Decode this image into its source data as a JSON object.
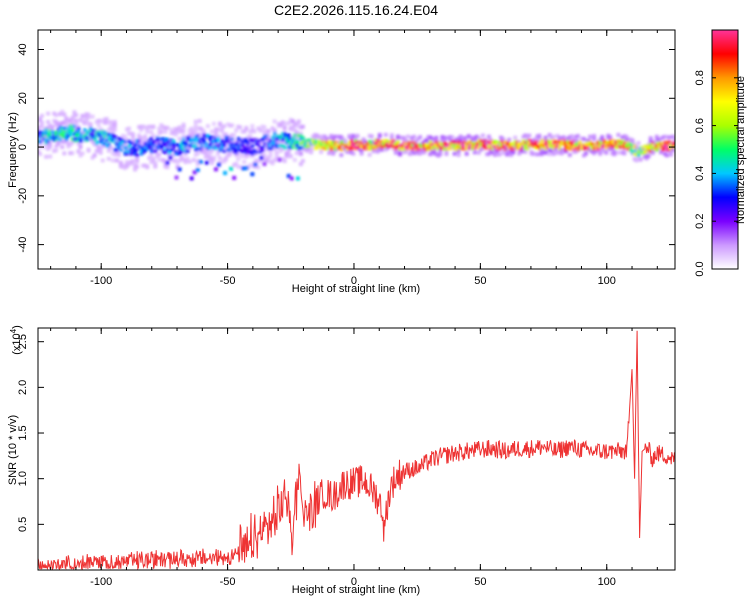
{
  "title": "C2E2.2026.115.16.24.E04",
  "chart_data": [
    {
      "type": "heatmap",
      "xlabel": "Height of straight line (km)",
      "ylabel": "Frequency (Hz)",
      "xlim": [
        -125,
        127
      ],
      "ylim": [
        -50,
        48
      ],
      "xticks": [
        -100,
        -50,
        0,
        50,
        100
      ],
      "yticks": [
        -40,
        -20,
        0,
        20,
        40
      ],
      "colorbar": {
        "label": "Normalized spectral amplitude",
        "range": [
          0.0,
          1.0
        ],
        "ticks": [
          0.0,
          0.2,
          0.4,
          0.6,
          0.8
        ],
        "tick_labels": [
          "0.0",
          "0.2",
          "0.4",
          "0.6",
          "0.8"
        ],
        "colormap": "rainbow (white→violet→blue→cyan→green→yellow→orange→red→magenta)",
        "colors": [
          "#ffffff",
          "#cc99ff",
          "#7a00ff",
          "#0000ff",
          "#00c8ff",
          "#00ff66",
          "#aaff00",
          "#ffff00",
          "#ff9900",
          "#ff0000",
          "#ff3399"
        ]
      },
      "ridge": {
        "description": "dominant frequency track",
        "x": [
          -125,
          -115,
          -105,
          -95,
          -88,
          -80,
          -70,
          -60,
          -50,
          -40,
          -30,
          -22,
          -15,
          -5,
          0,
          5,
          10,
          20,
          30,
          40,
          50,
          60,
          70,
          80,
          90,
          100,
          108,
          112,
          120,
          127
        ],
        "y": [
          4,
          6,
          5,
          2,
          -1,
          1,
          0,
          2,
          1,
          0,
          3,
          2,
          1,
          0.5,
          1,
          0.5,
          1.5,
          0.5,
          0.5,
          0.5,
          1,
          0.5,
          1,
          1,
          0.5,
          1,
          1,
          -2,
          0.5,
          0.5
        ],
        "amplitude": [
          0.45,
          0.5,
          0.45,
          0.4,
          0.4,
          0.35,
          0.4,
          0.4,
          0.35,
          0.3,
          0.4,
          0.5,
          0.7,
          0.9,
          0.95,
          0.9,
          0.9,
          0.95,
          0.95,
          0.95,
          0.95,
          0.95,
          0.95,
          0.95,
          0.95,
          0.95,
          0.9,
          0.6,
          0.95,
          0.95
        ]
      }
    },
    {
      "type": "line",
      "xlabel": "Height of straight line (km)",
      "ylabel": "SNR (10 * v/v)",
      "y_multiplier": "(x10",
      "y_multiplier_exp": "4",
      "xlim": [
        -125,
        127
      ],
      "ylim": [
        0.0,
        2.65
      ],
      "xticks": [
        -100,
        -50,
        0,
        50,
        100
      ],
      "yticks": [
        0.5,
        1.0,
        1.5,
        2.0,
        2.5
      ],
      "ytick_labels": [
        "0.5",
        "1.0",
        "1.5",
        "2.0",
        "2.5"
      ],
      "line_color": "#ee3333",
      "series": [
        {
          "x": [
            -125,
            -115,
            -105,
            -95,
            -85,
            -75,
            -65,
            -55,
            -48,
            -42,
            -38,
            -34,
            -30,
            -27,
            -24,
            -22,
            -20,
            -16,
            -12,
            -8,
            -4,
            0,
            4,
            8,
            11,
            12,
            13,
            15,
            18,
            22,
            26,
            30,
            35,
            40,
            45,
            50,
            55,
            60,
            65,
            70,
            75,
            80,
            85,
            90,
            95,
            100,
            105,
            108,
            110,
            111,
            112,
            113,
            114,
            116,
            118,
            120,
            124,
            127
          ],
          "y": [
            0.05,
            0.06,
            0.07,
            0.08,
            0.1,
            0.12,
            0.12,
            0.13,
            0.16,
            0.22,
            0.35,
            0.5,
            0.55,
            0.85,
            0.4,
            1.2,
            0.6,
            0.7,
            0.85,
            0.8,
            0.95,
            0.95,
            0.98,
            0.85,
            0.7,
            0.4,
            0.7,
            0.95,
            1.05,
            1.1,
            1.12,
            1.2,
            1.25,
            1.28,
            1.3,
            1.32,
            1.33,
            1.3,
            1.33,
            1.33,
            1.35,
            1.3,
            1.35,
            1.32,
            1.3,
            1.3,
            1.3,
            1.3,
            2.2,
            1.0,
            2.62,
            0.35,
            1.3,
            1.35,
            1.22,
            1.28,
            1.25,
            1.2
          ]
        }
      ]
    }
  ]
}
